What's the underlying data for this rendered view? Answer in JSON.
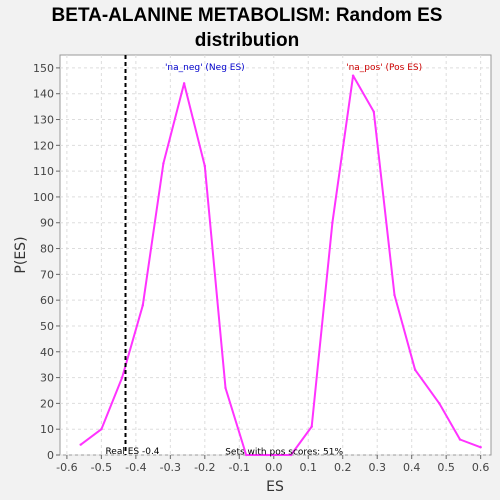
{
  "chart_data": {
    "type": "line",
    "title_lines": [
      "BETA-ALANINE METABOLISM: Random ES",
      "distribution"
    ],
    "xlabel": "ES",
    "ylabel": "P(ES)",
    "xlim": [
      -0.62,
      0.63
    ],
    "ylim": [
      0,
      155
    ],
    "x_ticks": [
      -0.6,
      -0.5,
      -0.4,
      -0.3,
      -0.2,
      -0.1,
      0.0,
      0.1,
      0.2,
      0.3,
      0.4,
      0.5,
      0.6
    ],
    "x_tick_labels": [
      "-0.6",
      "-0.5",
      "-0.4",
      "-0.3",
      "-0.2",
      "-0.1",
      "0.0",
      "0.1",
      "0.2",
      "0.3",
      "0.4",
      "0.5",
      "0.6"
    ],
    "y_ticks": [
      0,
      10,
      20,
      30,
      40,
      50,
      60,
      70,
      80,
      90,
      100,
      110,
      120,
      130,
      140,
      150
    ],
    "y_tick_labels": [
      "0",
      "10",
      "20",
      "30",
      "40",
      "50",
      "60",
      "70",
      "80",
      "90",
      "100",
      "110",
      "120",
      "130",
      "140",
      "150"
    ],
    "grid": true,
    "series": [
      {
        "color": "#ff33ff",
        "x": [
          -0.56,
          -0.5,
          -0.44,
          -0.38,
          -0.32,
          -0.26,
          -0.2,
          -0.14,
          -0.08,
          -0.02,
          0.05,
          0.11,
          0.17,
          0.23,
          0.29,
          0.35,
          0.41,
          0.48,
          0.54,
          0.6
        ],
        "y": [
          4,
          10,
          30,
          58,
          113,
          144,
          112,
          26,
          0,
          0,
          0,
          11,
          90,
          147,
          133,
          62,
          33,
          20,
          6,
          3
        ]
      }
    ],
    "reference_line": {
      "x": -0.43,
      "label": "Real ES -0.4",
      "color": "#000000"
    },
    "annotations": [
      {
        "text": "'na_neg' (Neg ES)",
        "color": "#0000cc",
        "x": -0.2,
        "y": 150
      },
      {
        "text": "'na_pos' (Pos ES)",
        "color": "#cc0000",
        "x": 0.32,
        "y": 150
      },
      {
        "text": "Sets with pos scores: 51%",
        "color": "#000000",
        "x": 0.03,
        "y": 1
      }
    ]
  }
}
